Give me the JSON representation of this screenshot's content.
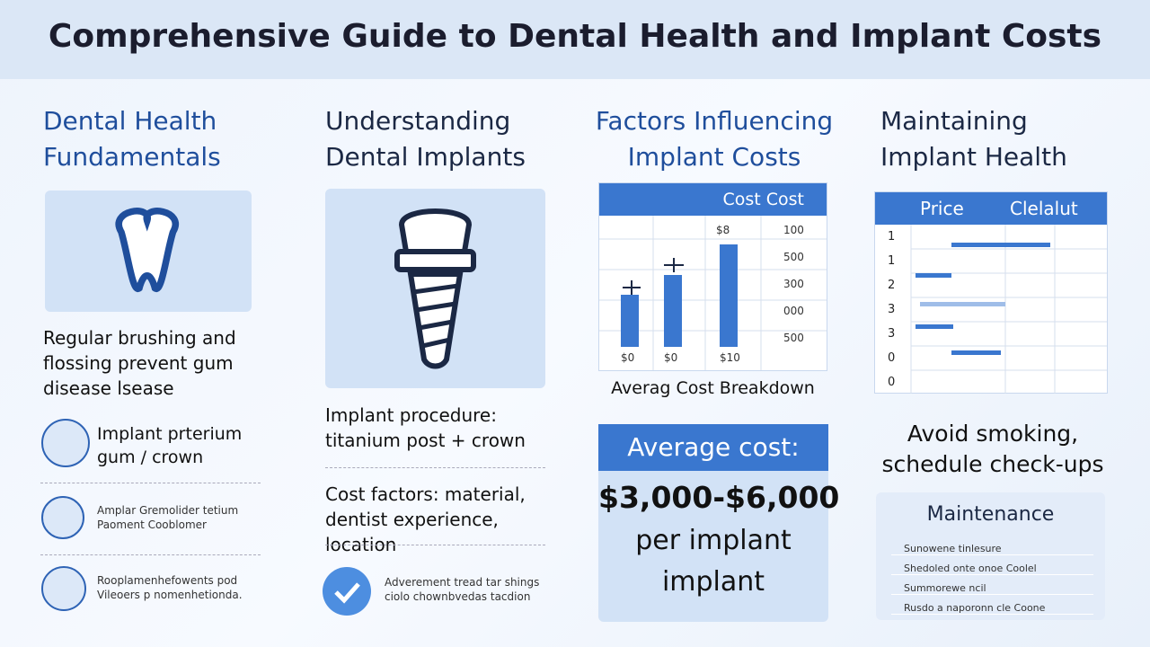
{
  "header": {
    "title": "Comprehensive Guide to Dental Health and Implant Costs"
  },
  "columns": [
    {
      "heading": "Dental Health Fundamentals",
      "text": "Regular brushing and flossing prevent gum disease lsease",
      "items": [
        "Implant prterium gum / crown",
        "Amplar Gremolider tetium Paoment Cooblomer",
        "Rooplamenhefowents pod Vileoers p nomenhetionda."
      ]
    },
    {
      "heading": "Understanding Dental Implants",
      "procedure": "Implant procedure: titanium post + crown",
      "factors": "Cost factors: material, dentist experience, location",
      "note": "Adverement tread tar shings ciolo chownbvedas tacdion"
    },
    {
      "heading": "Factors Influencing Implant Costs",
      "chart": {
        "header": "Cost Cost",
        "top_label": "$8",
        "axis_labels": [
          "100",
          "500",
          "300",
          "000",
          "500"
        ],
        "bar_labels": [
          "$0",
          "$0",
          "$10"
        ],
        "caption": "Averag Cost Breakdown"
      },
      "cost_box": {
        "heading": "Average cost:",
        "range": "$3,000-$6,000",
        "line1": "per implant",
        "line2": "implant"
      }
    },
    {
      "heading": "Maintaining Implant Health",
      "table": {
        "headers": [
          "Price",
          "Clelalut"
        ],
        "rows": [
          "1",
          "1",
          "2",
          "3",
          "3",
          "0",
          "0"
        ]
      },
      "tip": "Avoid smoking, schedule check-ups",
      "maintenance": {
        "heading": "Maintenance",
        "items": [
          "Sunowene tinlesure",
          "Shedoled onte onoe Coolel",
          "Summorewe ncil",
          "Rusdo a naporonn cle Coone"
        ]
      }
    }
  ]
}
